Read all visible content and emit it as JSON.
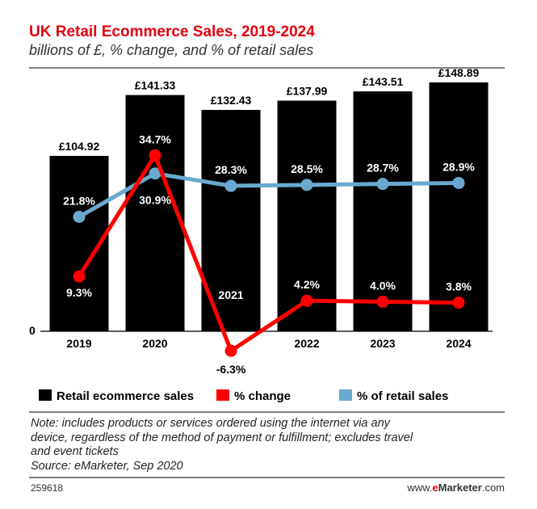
{
  "chart_data": {
    "type": "bar",
    "title": "UK Retail Ecommerce Sales, 2019-2024",
    "subtitle": "billions of £, % change, and % of retail sales",
    "categories": [
      "2019",
      "2020",
      "2021",
      "2022",
      "2023",
      "2024"
    ],
    "y_zero_label": "0",
    "series": [
      {
        "name": "Retail ecommerce sales",
        "type": "bar",
        "color": "#000000",
        "values": [
          104.92,
          141.33,
          132.43,
          137.99,
          143.51,
          148.89
        ],
        "labels": [
          "£104.92",
          "£141.33",
          "£132.43",
          "£137.99",
          "£143.51",
          "£148.89"
        ]
      },
      {
        "name": "% change",
        "type": "line",
        "color": "#ff0000",
        "values": [
          9.3,
          34.7,
          -6.3,
          4.2,
          4.0,
          3.8
        ],
        "labels": [
          "9.3%",
          "34.7%",
          "-6.3%",
          "4.2%",
          "4.0%",
          "3.8%"
        ]
      },
      {
        "name": "% of retail sales",
        "type": "line",
        "color": "#6aa9cf",
        "values": [
          21.8,
          30.9,
          28.3,
          28.5,
          28.7,
          28.9
        ],
        "labels": [
          "21.8%",
          "30.9%",
          "28.3%",
          "28.5%",
          "28.7%",
          "28.9%"
        ]
      }
    ],
    "legend_position": "bottom",
    "grid": false
  },
  "note": [
    "Note: includes products or services ordered using the internet via any",
    "device, regardless of the method of payment or fulfillment; excludes travel",
    "and event tickets"
  ],
  "source": "Source: eMarketer, Sep 2020",
  "footer": {
    "chart_id": "259618",
    "brand_prefix": "www.",
    "brand_e": "e",
    "brand_name": "Marketer",
    "brand_suffix": ".com"
  }
}
